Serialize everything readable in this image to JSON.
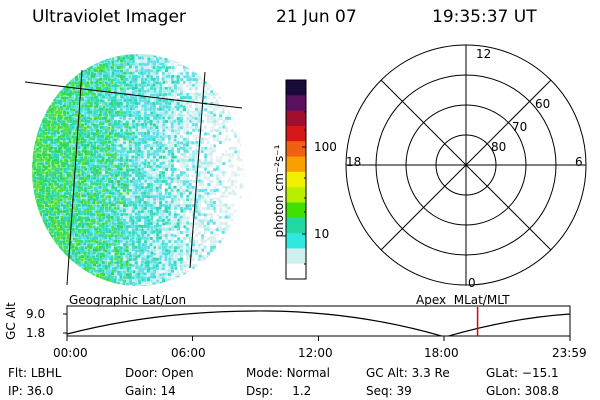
{
  "header": {
    "instrument": "Ultraviolet Imager",
    "date": "21 Jun 07",
    "time": "19:35:37 UT"
  },
  "left_panel": {
    "caption": "Geographic Lat/Lon"
  },
  "right_panel": {
    "caption": "Apex  MLat/MLT",
    "mlt_labels": {
      "top": "12",
      "bottom": "0",
      "left": "18",
      "right": "6"
    },
    "ring_labels": [
      "80",
      "70",
      "60"
    ]
  },
  "colorbar": {
    "unit_label": "photon cm⁻²s⁻¹",
    "tick_labels": [
      "100",
      "10"
    ],
    "colors": [
      "#1a0a3a",
      "#5a1260",
      "#a0102e",
      "#d81818",
      "#f06010",
      "#f8a000",
      "#f0f000",
      "#b8f000",
      "#40e000",
      "#20d8a0",
      "#30e8e0",
      "#d0f0f0",
      "#ffffff"
    ]
  },
  "altitude_track": {
    "axis_label": "GC Alt",
    "y_ticks": [
      "9.0",
      "1.8"
    ],
    "x_ticks": [
      "00:00",
      "06:00",
      "12:00",
      "18:00",
      "23:59"
    ],
    "current_time_marker_hours": 19.59
  },
  "info": {
    "row1": [
      {
        "label": "Flt:",
        "value": "LBHL"
      },
      {
        "label": "Door:",
        "value": "Open"
      },
      {
        "label": "Mode:",
        "value": "Normal"
      },
      {
        "label": "GC Alt:",
        "value": "3.3 Re"
      },
      {
        "label": "GLat:",
        "value": "−15.1"
      }
    ],
    "row2": [
      {
        "label": "IP:",
        "value": "36.0"
      },
      {
        "label": "Gain:",
        "value": "14"
      },
      {
        "label": "Dsp:",
        "value": "1.2"
      },
      {
        "label": "Seq:",
        "value": "39"
      },
      {
        "label": "GLon:",
        "value": "308.8"
      }
    ]
  }
}
